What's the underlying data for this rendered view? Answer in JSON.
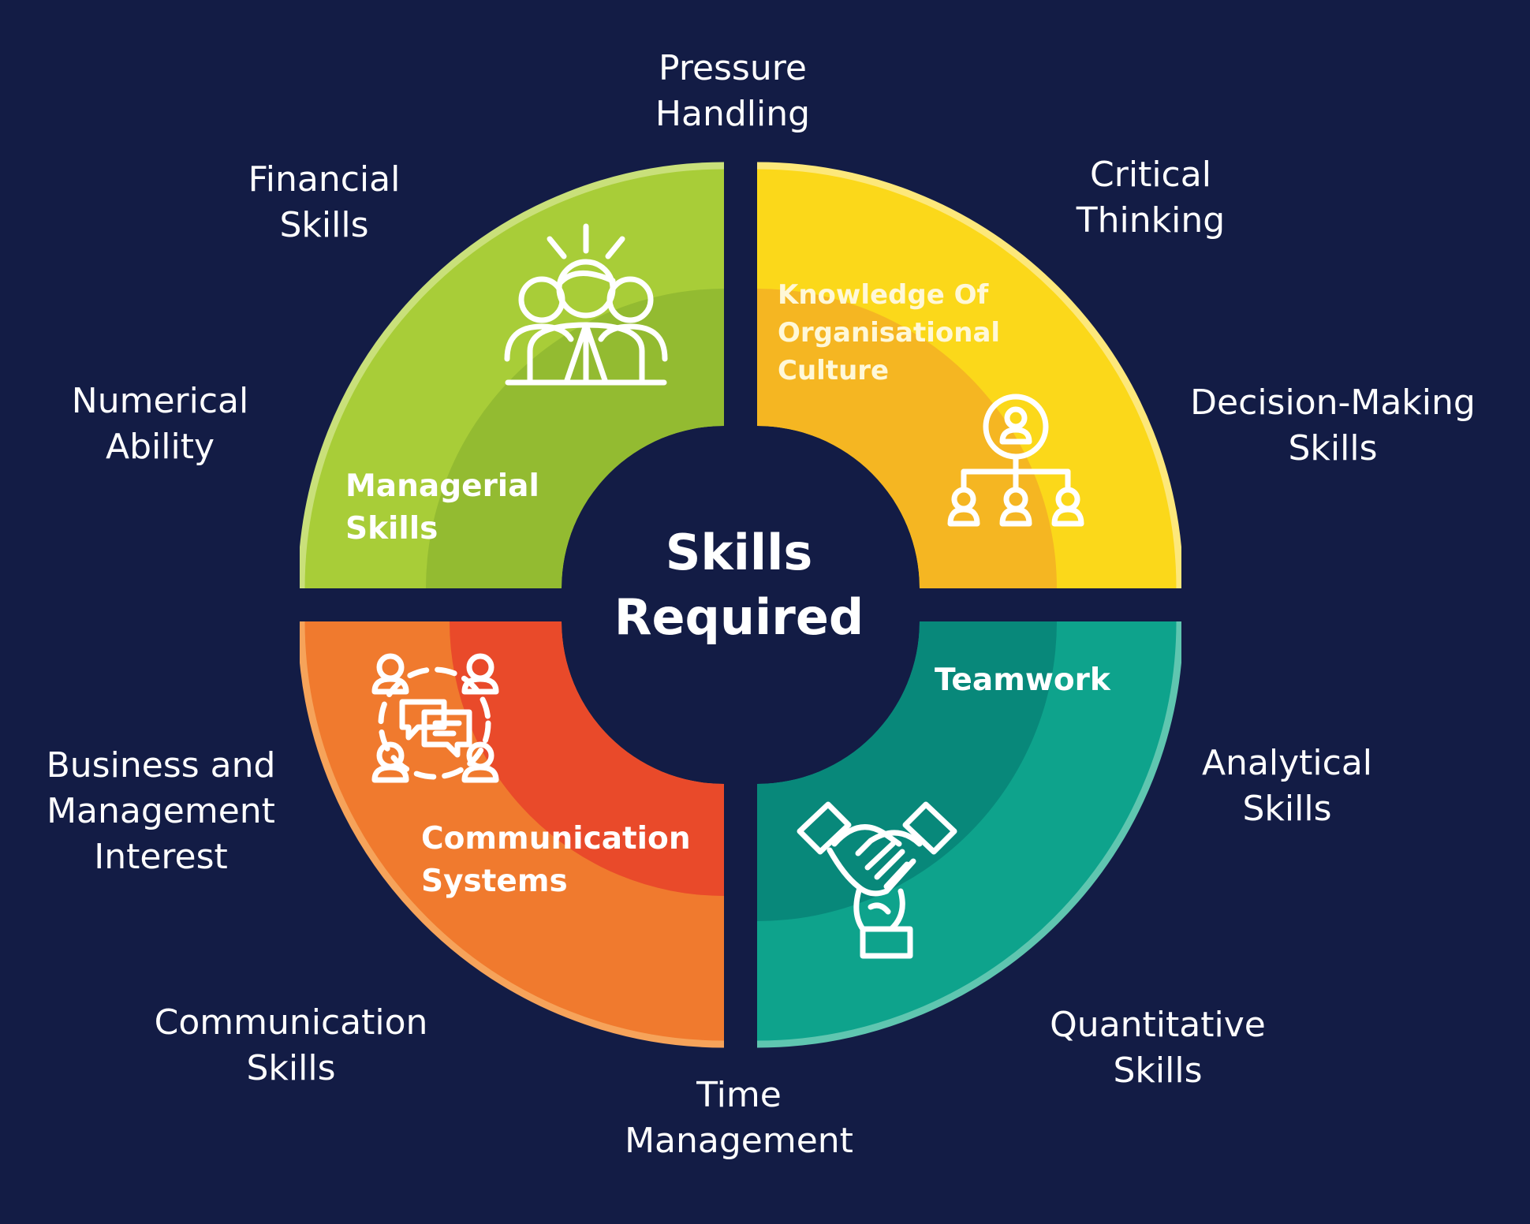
{
  "center": {
    "line1": "Skills",
    "line2": "Required"
  },
  "segments": [
    {
      "id": "managerial",
      "lines": [
        "Managerial",
        "Skills"
      ],
      "icon": "team-leader-icon",
      "color_light": "#a8cd38",
      "color_dark": "#93bb31"
    },
    {
      "id": "organisational",
      "lines": [
        "Knowledge Of",
        "Organisational",
        "Culture"
      ],
      "icon": "org-chart-icon",
      "color_light": "#fbd81a",
      "color_dark": "#f5b622"
    },
    {
      "id": "communication",
      "lines": [
        "Communication",
        "Systems"
      ],
      "icon": "group-chat-icon",
      "color_light": "#f07a2e",
      "color_dark": "#e94a2a"
    },
    {
      "id": "teamwork",
      "lines": [
        "Teamwork"
      ],
      "icon": "handshake-icon",
      "color_light": "#0ea38c",
      "color_dark": "#08887a"
    }
  ],
  "outer_skills": [
    {
      "id": "pressure",
      "lines": [
        "Pressure",
        "Handling"
      ]
    },
    {
      "id": "critical",
      "lines": [
        "Critical",
        "Thinking"
      ]
    },
    {
      "id": "decision",
      "lines": [
        "Decision-Making",
        "Skills"
      ]
    },
    {
      "id": "analytical",
      "lines": [
        "Analytical",
        "Skills"
      ]
    },
    {
      "id": "quantitative",
      "lines": [
        "Quantitative",
        "Skills"
      ]
    },
    {
      "id": "time",
      "lines": [
        "Time",
        "Management"
      ]
    },
    {
      "id": "commskills",
      "lines": [
        "Communication",
        "Skills"
      ]
    },
    {
      "id": "business",
      "lines": [
        "Business and",
        "Management",
        "Interest"
      ]
    },
    {
      "id": "numerical",
      "lines": [
        "Numerical",
        "Ability"
      ]
    },
    {
      "id": "financial",
      "lines": [
        "Financial",
        "Skills"
      ]
    }
  ],
  "colors": {
    "background": "#131c45",
    "text": "#ffffff"
  }
}
